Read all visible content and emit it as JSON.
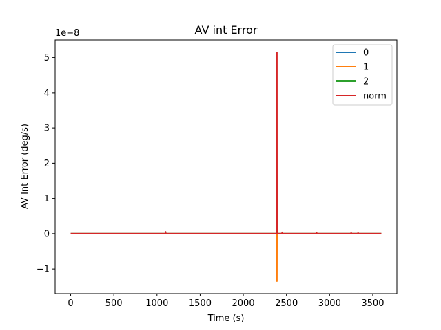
{
  "chart_data": {
    "type": "line",
    "title": "AV int Error",
    "xlabel": "Time (s)",
    "ylabel": "AV Int Error (deg/s)",
    "y_offset_text": "1e−8",
    "y_scale": 1e-08,
    "xlim": [
      -180,
      3780
    ],
    "ylim": [
      -1.7,
      5.5
    ],
    "x_ticks": [
      0,
      500,
      1000,
      1500,
      2000,
      2500,
      3000,
      3500
    ],
    "x_tick_labels": [
      "0",
      "500",
      "1000",
      "1500",
      "2000",
      "2500",
      "3000",
      "3500"
    ],
    "y_ticks": [
      -1,
      0,
      1,
      2,
      3,
      4,
      5
    ],
    "y_tick_labels": [
      "−1",
      "0",
      "1",
      "2",
      "3",
      "4",
      "5"
    ],
    "grid": false,
    "legend_position": "top-right",
    "series": [
      {
        "name": "0",
        "color": "#1f77b4",
        "x": [
          0,
          1100,
          1100,
          1101,
          2390,
          2390,
          2391,
          3600
        ],
        "y": [
          0,
          0,
          0.05,
          0,
          0,
          0.08,
          0,
          0
        ]
      },
      {
        "name": "1",
        "color": "#ff7f0e",
        "x": [
          0,
          2390,
          2390,
          2391,
          3600
        ],
        "y": [
          0,
          0,
          -1.35,
          0,
          0
        ]
      },
      {
        "name": "2",
        "color": "#2ca02c",
        "x": [
          0,
          1100,
          1100,
          1101,
          2390,
          2390,
          2391,
          3600
        ],
        "y": [
          0,
          0,
          0.04,
          0,
          0,
          0.05,
          0,
          0
        ]
      },
      {
        "name": "norm",
        "color": "#d62728",
        "x": [
          0,
          1100,
          1100,
          1101,
          2390,
          2390,
          2391,
          2450,
          2450,
          2451,
          2850,
          2850,
          2851,
          3250,
          3250,
          3251,
          3330,
          3330,
          3331,
          3600
        ],
        "y": [
          0,
          0,
          0.05,
          0,
          0,
          5.15,
          0,
          0,
          0.04,
          0,
          0,
          0.03,
          0,
          0,
          0.04,
          0,
          0,
          0.03,
          0,
          0
        ]
      }
    ]
  }
}
